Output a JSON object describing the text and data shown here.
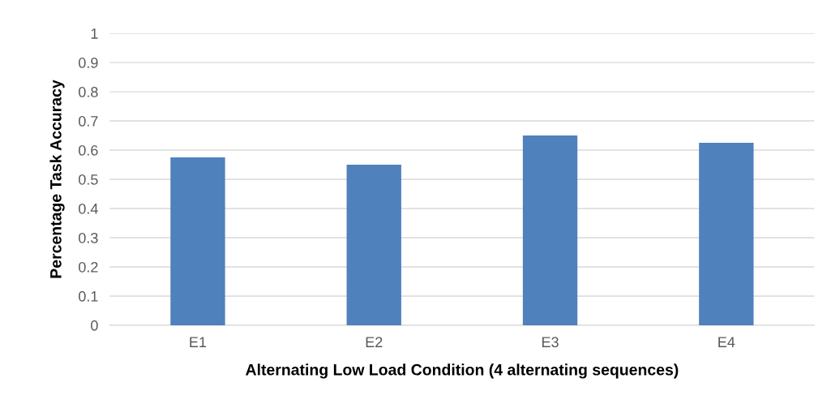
{
  "chart_data": {
    "type": "bar",
    "xlabel": "Alternating Low Load Condition (4 alternating sequences)",
    "ylabel": "Percentage Task Accuracy",
    "categories": [
      "E1",
      "E2",
      "E3",
      "E4"
    ],
    "values": [
      0.575,
      0.55,
      0.65,
      0.625
    ],
    "color": "#4f81bd",
    "ylim": [
      0,
      1
    ],
    "yticks": [
      0,
      0.1,
      0.2,
      0.3,
      0.4,
      0.5,
      0.6,
      0.7,
      0.8,
      0.9,
      1
    ],
    "grid": "y"
  }
}
